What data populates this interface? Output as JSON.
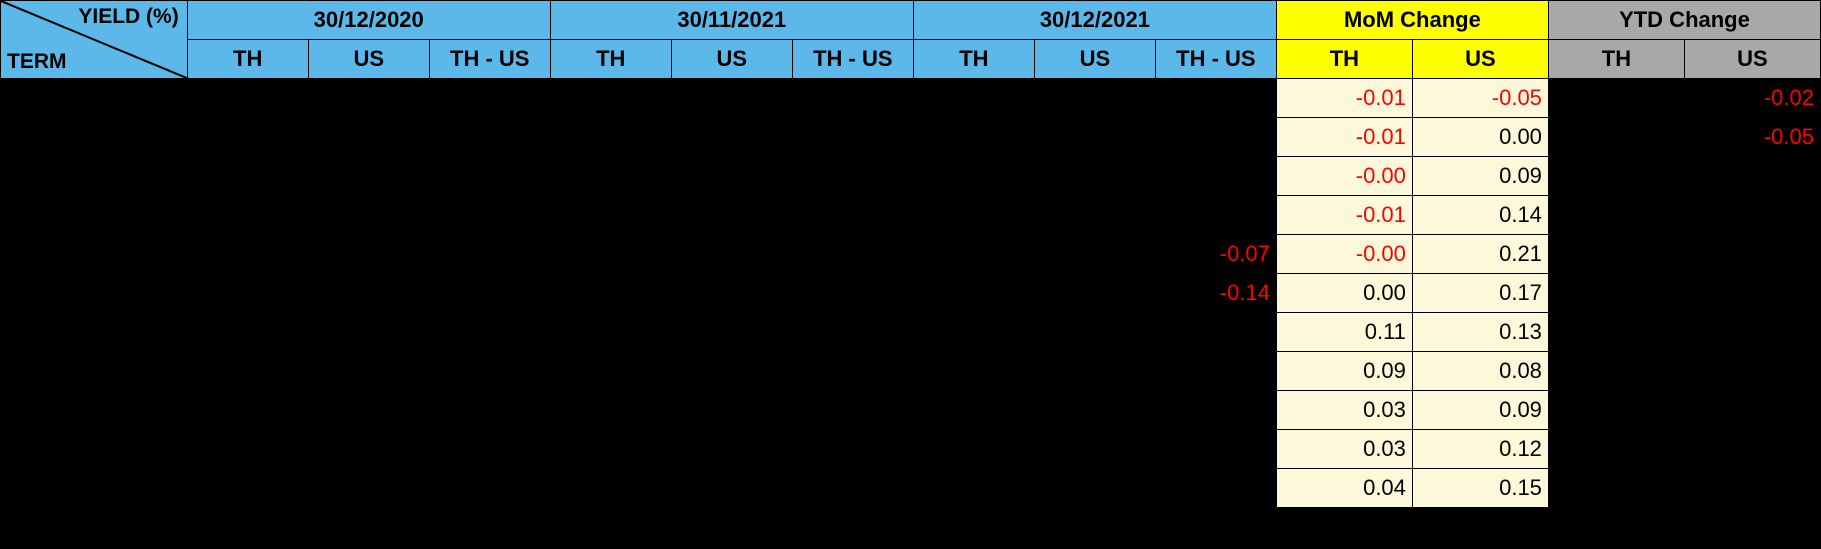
{
  "table": {
    "type": "table",
    "background_color": "#000000",
    "header_colors": {
      "blue": "#5bb8e8",
      "yellow": "#ffff00",
      "gray": "#a8a8a8"
    },
    "body_colors": {
      "black": "#000000",
      "cream": "#fcf8d9"
    },
    "text_colors": {
      "normal_on_black": "#ffffff",
      "normal_on_light": "#000000",
      "negative": "#ff0000"
    },
    "fontsize": 22,
    "corner": {
      "top_label": "YIELD (%)",
      "bottom_label": "TERM"
    },
    "date_groups": [
      "30/12/2020",
      "30/11/2021",
      "30/12/2021"
    ],
    "date_sub": [
      "TH",
      "US",
      "TH - US"
    ],
    "mom_label": "MoM Change",
    "ytd_label": "YTD Change",
    "change_sub": [
      "TH",
      "US"
    ],
    "columns": [
      "term",
      "d1_th",
      "d1_us",
      "d1_diff",
      "d2_th",
      "d2_us",
      "d2_diff",
      "d3_th",
      "d3_us",
      "d3_diff",
      "mom_th",
      "mom_us",
      "ytd_th",
      "ytd_us"
    ],
    "column_bg_class": {
      "term": "body-black",
      "d1_th": "body-black",
      "d1_us": "body-black",
      "d1_diff": "body-black",
      "d2_th": "body-black",
      "d2_us": "body-black",
      "d2_diff": "body-black",
      "d3_th": "body-black",
      "d3_us": "body-black",
      "d3_diff": "body-black",
      "mom_th": "body-cream",
      "mom_us": "body-cream",
      "ytd_th": "body-black",
      "ytd_us": "body-black"
    },
    "rows": [
      {
        "term": "",
        "d1_th": "",
        "d1_us": "",
        "d1_diff": "",
        "d2_th": "",
        "d2_us": "",
        "d2_diff": "",
        "d3_th": "",
        "d3_us": "",
        "d3_diff": "",
        "mom_th": "-0.01",
        "mom_us": "-0.05",
        "ytd_th": "",
        "ytd_us": "-0.02"
      },
      {
        "term": "",
        "d1_th": "",
        "d1_us": "",
        "d1_diff": "",
        "d2_th": "",
        "d2_us": "",
        "d2_diff": "",
        "d3_th": "",
        "d3_us": "",
        "d3_diff": "",
        "mom_th": "-0.01",
        "mom_us": "0.00",
        "ytd_th": "",
        "ytd_us": "-0.05"
      },
      {
        "term": "",
        "d1_th": "",
        "d1_us": "",
        "d1_diff": "",
        "d2_th": "",
        "d2_us": "",
        "d2_diff": "",
        "d3_th": "",
        "d3_us": "",
        "d3_diff": "",
        "mom_th": "-0.00",
        "mom_us": "0.09",
        "ytd_th": "",
        "ytd_us": ""
      },
      {
        "term": "",
        "d1_th": "",
        "d1_us": "",
        "d1_diff": "",
        "d2_th": "",
        "d2_us": "",
        "d2_diff": "",
        "d3_th": "",
        "d3_us": "",
        "d3_diff": "",
        "mom_th": "-0.01",
        "mom_us": "0.14",
        "ytd_th": "",
        "ytd_us": ""
      },
      {
        "term": "",
        "d1_th": "",
        "d1_us": "",
        "d1_diff": "",
        "d2_th": "",
        "d2_us": "",
        "d2_diff": "",
        "d3_th": "",
        "d3_us": "",
        "d3_diff": "-0.07",
        "mom_th": "-0.00",
        "mom_us": "0.21",
        "ytd_th": "",
        "ytd_us": ""
      },
      {
        "term": "",
        "d1_th": "",
        "d1_us": "",
        "d1_diff": "",
        "d2_th": "",
        "d2_us": "",
        "d2_diff": "",
        "d3_th": "",
        "d3_us": "",
        "d3_diff": "-0.14",
        "mom_th": "0.00",
        "mom_us": "0.17",
        "ytd_th": "",
        "ytd_us": ""
      },
      {
        "term": "",
        "d1_th": "",
        "d1_us": "",
        "d1_diff": "",
        "d2_th": "",
        "d2_us": "",
        "d2_diff": "",
        "d3_th": "",
        "d3_us": "",
        "d3_diff": "",
        "mom_th": "0.11",
        "mom_us": "0.13",
        "ytd_th": "",
        "ytd_us": ""
      },
      {
        "term": "",
        "d1_th": "",
        "d1_us": "",
        "d1_diff": "",
        "d2_th": "",
        "d2_us": "",
        "d2_diff": "",
        "d3_th": "",
        "d3_us": "",
        "d3_diff": "",
        "mom_th": "0.09",
        "mom_us": "0.08",
        "ytd_th": "",
        "ytd_us": ""
      },
      {
        "term": "",
        "d1_th": "",
        "d1_us": "",
        "d1_diff": "",
        "d2_th": "",
        "d2_us": "",
        "d2_diff": "",
        "d3_th": "",
        "d3_us": "",
        "d3_diff": "",
        "mom_th": "0.03",
        "mom_us": "0.09",
        "ytd_th": "",
        "ytd_us": ""
      },
      {
        "term": "",
        "d1_th": "",
        "d1_us": "",
        "d1_diff": "",
        "d2_th": "",
        "d2_us": "",
        "d2_diff": "",
        "d3_th": "",
        "d3_us": "",
        "d3_diff": "",
        "mom_th": "0.03",
        "mom_us": "0.12",
        "ytd_th": "",
        "ytd_us": ""
      },
      {
        "term": "",
        "d1_th": "",
        "d1_us": "",
        "d1_diff": "",
        "d2_th": "",
        "d2_us": "",
        "d2_diff": "",
        "d3_th": "",
        "d3_us": "",
        "d3_diff": "",
        "mom_th": "0.04",
        "mom_us": "0.15",
        "ytd_th": "",
        "ytd_us": ""
      }
    ],
    "mom_align": "right",
    "ytd_align": "right",
    "diff_align": "right"
  }
}
